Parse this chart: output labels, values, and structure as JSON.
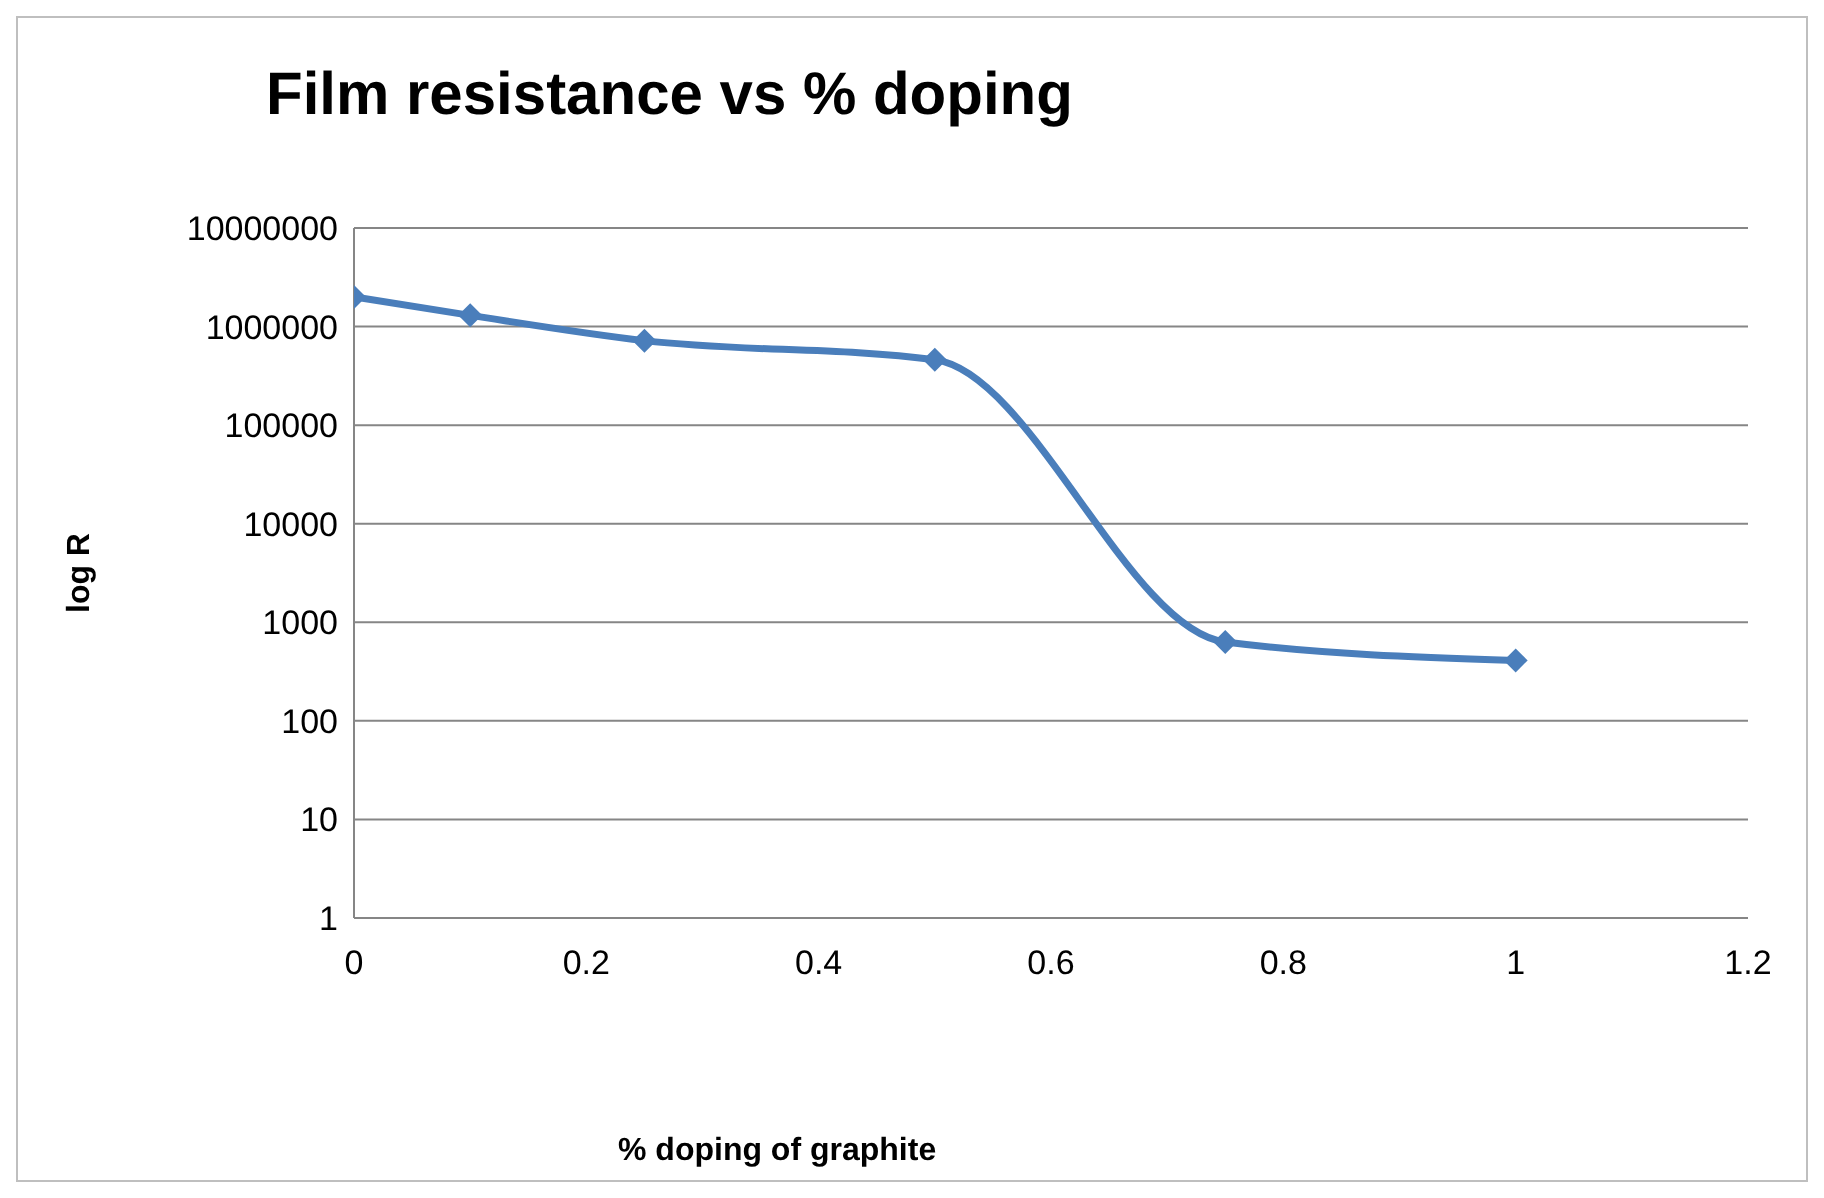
{
  "chart_data": {
    "type": "line",
    "title": "Film resistance vs % doping",
    "xlabel": "% doping of graphite",
    "ylabel": "log R",
    "x": [
      0,
      0.1,
      0.25,
      0.5,
      0.75,
      1
    ],
    "series": [
      {
        "color": "#4a7ebb",
        "values": [
          2000000,
          1300000,
          720000,
          460000,
          630,
          410
        ]
      }
    ],
    "xlim": [
      0,
      1.2
    ],
    "xticks": [
      0,
      0.2,
      0.4,
      0.6,
      0.8,
      1,
      1.2
    ],
    "ylim": [
      1,
      10000000
    ],
    "yticks": [
      1,
      10,
      100,
      1000,
      10000,
      100000,
      1000000,
      10000000
    ],
    "log": "y",
    "grid": "y",
    "marker": "diamond",
    "legend": false
  }
}
